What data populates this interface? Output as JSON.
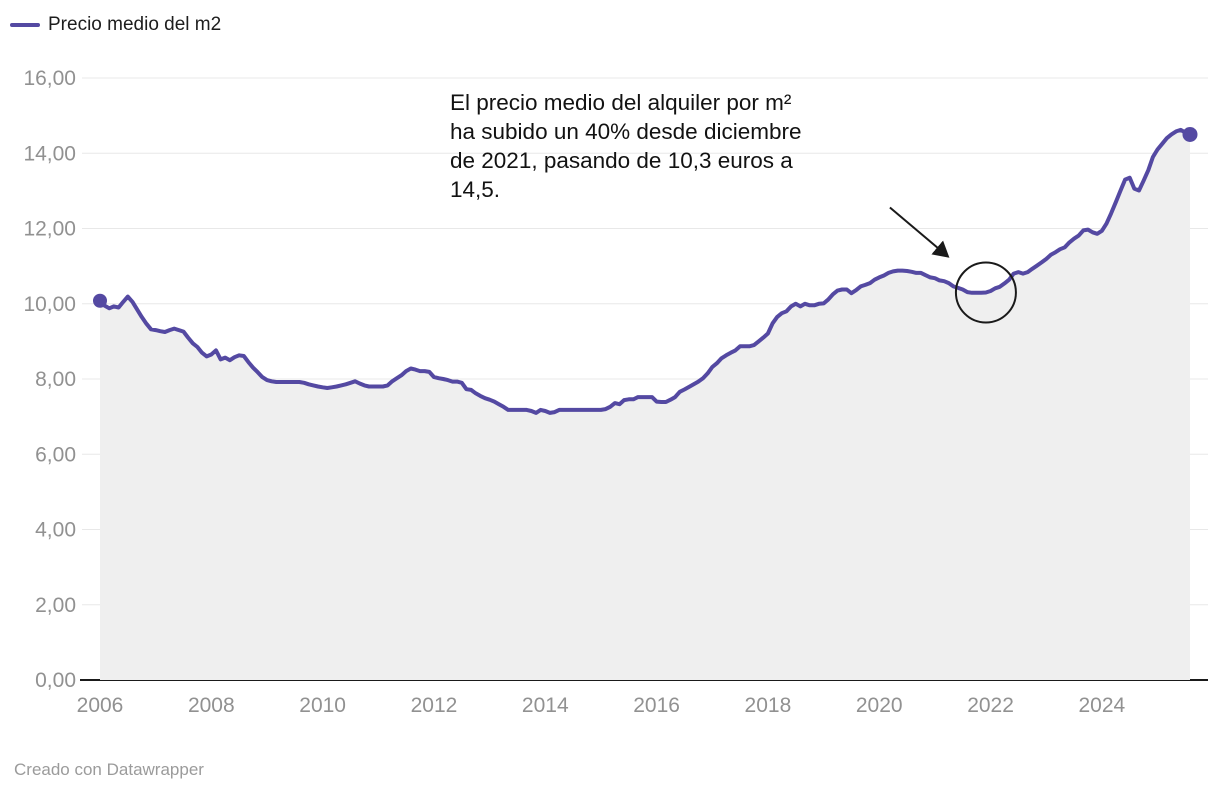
{
  "legend": {
    "label": "Precio medio del m2"
  },
  "annotation": {
    "lines": [
      "El precio medio del alquiler por m²",
      "ha subido un 40% desde diciembre",
      "de 2021, pasando de 10,3 euros a",
      "14,5."
    ],
    "highlight_month": "2021-12",
    "highlight_value": 10.3
  },
  "footer": {
    "credit": "Creado con Datawrapper"
  },
  "colors": {
    "line": "#5449a2",
    "area_fill": "#efefef",
    "grid": "#e8e8e8",
    "baseline": "#1a1a1a",
    "axis_text": "#919191",
    "annotation_ink": "#1a1a1a"
  },
  "chart_data": {
    "type": "line",
    "title": "",
    "xlabel": "",
    "ylabel": "",
    "unit": "euros por m2",
    "grid": "horizontal",
    "legend_position": "top-left",
    "ylim": [
      0,
      16
    ],
    "y_tick_step": 2,
    "y_tick_labels": [
      "0,00",
      "2,00",
      "4,00",
      "6,00",
      "8,00",
      "10,00",
      "12,00",
      "14,00",
      "16,00"
    ],
    "x_tick_years": [
      2006,
      2008,
      2010,
      2012,
      2014,
      2016,
      2018,
      2020,
      2022,
      2024
    ],
    "series": [
      {
        "name": "Precio medio del m2",
        "frequency": "monthly",
        "start": "2006-01",
        "end": "2025-08",
        "endpoint_markers": true,
        "values": [
          10.08,
          9.95,
          9.88,
          9.93,
          9.9,
          10.05,
          10.19,
          10.05,
          9.85,
          9.65,
          9.47,
          9.32,
          9.3,
          9.27,
          9.25,
          9.3,
          9.34,
          9.3,
          9.26,
          9.1,
          8.95,
          8.85,
          8.7,
          8.6,
          8.65,
          8.76,
          8.52,
          8.57,
          8.5,
          8.58,
          8.63,
          8.61,
          8.45,
          8.3,
          8.18,
          8.05,
          7.97,
          7.94,
          7.92,
          7.92,
          7.92,
          7.92,
          7.92,
          7.92,
          7.9,
          7.86,
          7.83,
          7.8,
          7.78,
          7.76,
          7.78,
          7.8,
          7.83,
          7.86,
          7.9,
          7.94,
          7.88,
          7.83,
          7.8,
          7.8,
          7.8,
          7.8,
          7.83,
          7.94,
          8.02,
          8.1,
          8.21,
          8.28,
          8.25,
          8.21,
          8.21,
          8.19,
          8.05,
          8.02,
          8.0,
          7.97,
          7.93,
          7.93,
          7.9,
          7.73,
          7.71,
          7.62,
          7.55,
          7.49,
          7.45,
          7.4,
          7.33,
          7.26,
          7.18,
          7.18,
          7.18,
          7.18,
          7.18,
          7.15,
          7.1,
          7.18,
          7.15,
          7.1,
          7.12,
          7.18,
          7.18,
          7.18,
          7.18,
          7.18,
          7.18,
          7.18,
          7.18,
          7.18,
          7.18,
          7.2,
          7.26,
          7.36,
          7.33,
          7.44,
          7.46,
          7.46,
          7.52,
          7.52,
          7.52,
          7.52,
          7.4,
          7.39,
          7.39,
          7.45,
          7.52,
          7.66,
          7.72,
          7.79,
          7.86,
          7.93,
          8.02,
          8.15,
          8.32,
          8.42,
          8.55,
          8.63,
          8.7,
          8.76,
          8.87,
          8.87,
          8.87,
          8.9,
          9.0,
          9.1,
          9.21,
          9.48,
          9.65,
          9.75,
          9.8,
          9.93,
          10.0,
          9.93,
          10.0,
          9.96,
          9.96,
          10.0,
          10.01,
          10.11,
          10.25,
          10.35,
          10.38,
          10.38,
          10.28,
          10.36,
          10.46,
          10.5,
          10.55,
          10.64,
          10.7,
          10.75,
          10.82,
          10.86,
          10.88,
          10.88,
          10.87,
          10.85,
          10.82,
          10.82,
          10.76,
          10.7,
          10.68,
          10.62,
          10.6,
          10.55,
          10.46,
          10.42,
          10.38,
          10.31,
          10.29,
          10.29,
          10.29,
          10.3,
          10.34,
          10.41,
          10.45,
          10.54,
          10.64,
          10.8,
          10.84,
          10.8,
          10.84,
          10.93,
          11.01,
          11.1,
          11.19,
          11.3,
          11.37,
          11.45,
          11.5,
          11.63,
          11.73,
          11.81,
          11.95,
          11.97,
          11.9,
          11.86,
          11.94,
          12.13,
          12.4,
          12.7,
          13.0,
          13.3,
          13.35,
          13.06,
          13.01,
          13.27,
          13.55,
          13.9,
          14.1,
          14.25,
          14.4,
          14.5,
          14.58,
          14.62,
          14.55,
          14.5
        ]
      }
    ]
  }
}
